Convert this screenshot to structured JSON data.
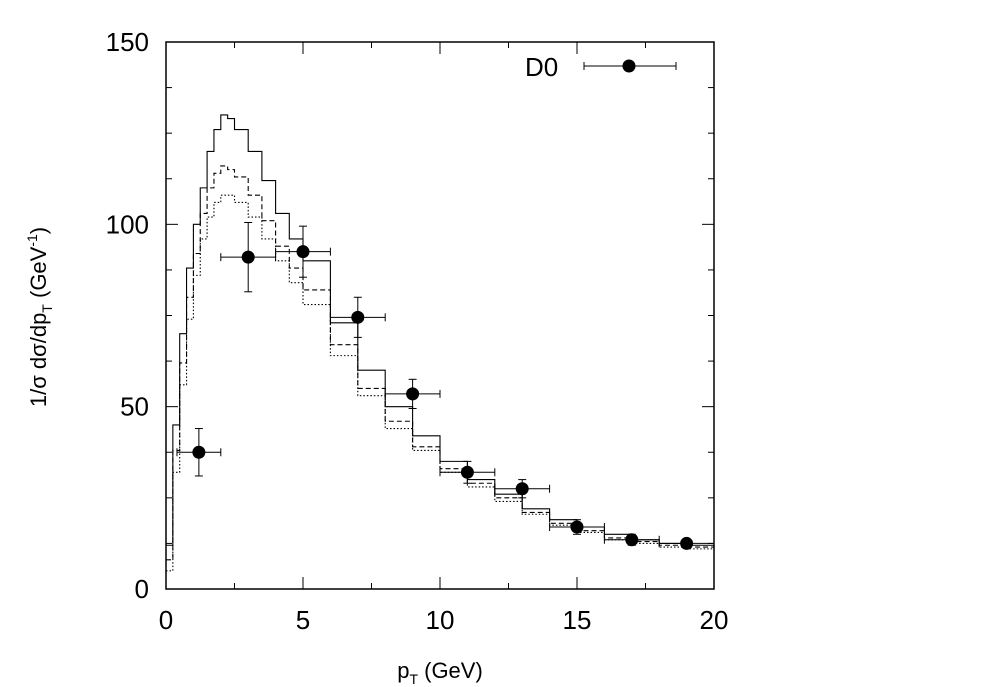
{
  "chart_data": {
    "type": "scatter",
    "title": "",
    "xlabel": {
      "main": "p",
      "sub": "T",
      "rest": " (GeV)"
    },
    "ylabel": {
      "p1": "1/σ dσ/dp",
      "sub": "T",
      "p2": " (GeV",
      "sup": "-1",
      "p3": ")"
    },
    "xlim": [
      0,
      20
    ],
    "ylim": [
      0,
      150
    ],
    "x_ticks": [
      "0",
      "5",
      "10",
      "15",
      "20"
    ],
    "y_ticks": [
      "0",
      "50",
      "100",
      "150"
    ],
    "grid": false,
    "legend_position": "top-right",
    "series": [
      {
        "name": "D0",
        "style": "points-with-errorbars",
        "points": [
          {
            "x": 1.2,
            "y": 37.5,
            "xerr": 0.8,
            "yerr": 6.5
          },
          {
            "x": 3.0,
            "y": 91.0,
            "xerr": 1.0,
            "yerr": 9.5
          },
          {
            "x": 5.0,
            "y": 92.5,
            "xerr": 1.0,
            "yerr": 7.0
          },
          {
            "x": 7.0,
            "y": 74.5,
            "xerr": 1.0,
            "yerr": 5.5
          },
          {
            "x": 9.0,
            "y": 53.5,
            "xerr": 1.0,
            "yerr": 4.0
          },
          {
            "x": 11.0,
            "y": 32.0,
            "xerr": 1.0,
            "yerr": 3.0
          },
          {
            "x": 13.0,
            "y": 27.5,
            "xerr": 1.0,
            "yerr": 2.5
          },
          {
            "x": 15.0,
            "y": 17.0,
            "xerr": 1.0,
            "yerr": 2.0
          },
          {
            "x": 17.0,
            "y": 13.5,
            "xerr": 1.0,
            "yerr": 1.5
          },
          {
            "x": 19.0,
            "y": 12.5,
            "xerr": 1.0,
            "yerr": 1.0
          }
        ]
      },
      {
        "style": "solid",
        "x": [
          0.0,
          0.25,
          0.5,
          0.75,
          1.0,
          1.25,
          1.5,
          1.75,
          2.0,
          2.25,
          2.5,
          3.0,
          3.5,
          4.0,
          4.5,
          5.0,
          6.0,
          7.0,
          8.0,
          9.0,
          10.0,
          11.0,
          12.0,
          13.0,
          14.0,
          15.0,
          16.0,
          17.0,
          18.0,
          19.0,
          20.0
        ],
        "y": [
          12,
          45,
          70,
          88,
          100,
          110,
          120,
          126,
          130,
          129,
          126,
          120,
          112,
          103,
          96,
          90,
          73,
          60,
          50,
          42,
          35,
          30,
          26,
          22,
          19,
          17,
          15,
          13.5,
          12.5,
          12,
          11.5
        ]
      },
      {
        "style": "dashed",
        "x": [
          0.0,
          0.25,
          0.5,
          0.75,
          1.0,
          1.25,
          1.5,
          1.75,
          2.0,
          2.25,
          2.5,
          3.0,
          3.5,
          4.0,
          4.5,
          5.0,
          6.0,
          7.0,
          8.0,
          9.0,
          10.0,
          11.0,
          12.0,
          13.0,
          14.0,
          15.0,
          16.0,
          17.0,
          18.0,
          19.0,
          20.0
        ],
        "y": [
          8,
          38,
          62,
          80,
          92,
          103,
          110,
          114,
          116,
          115,
          113,
          108,
          101,
          94,
          88,
          82,
          67,
          55,
          46,
          39,
          33,
          29,
          25,
          21,
          18,
          16,
          14,
          13,
          12,
          11.5,
          11
        ]
      },
      {
        "style": "dotted",
        "x": [
          0.0,
          0.25,
          0.5,
          0.75,
          1.0,
          1.25,
          1.5,
          1.75,
          2.0,
          2.25,
          2.5,
          3.0,
          3.5,
          4.0,
          4.5,
          5.0,
          6.0,
          7.0,
          8.0,
          9.0,
          10.0,
          11.0,
          12.0,
          13.0,
          14.0,
          15.0,
          16.0,
          17.0,
          18.0,
          19.0,
          20.0
        ],
        "y": [
          5,
          32,
          56,
          74,
          86,
          96,
          102,
          106,
          108,
          108,
          106,
          102,
          96,
          90,
          84,
          78,
          64,
          53,
          44,
          38,
          32,
          28,
          24,
          20.5,
          17.5,
          15.5,
          13.5,
          12.5,
          11.5,
          11,
          10.5
        ]
      }
    ],
    "legend": {
      "label": "D0"
    }
  }
}
